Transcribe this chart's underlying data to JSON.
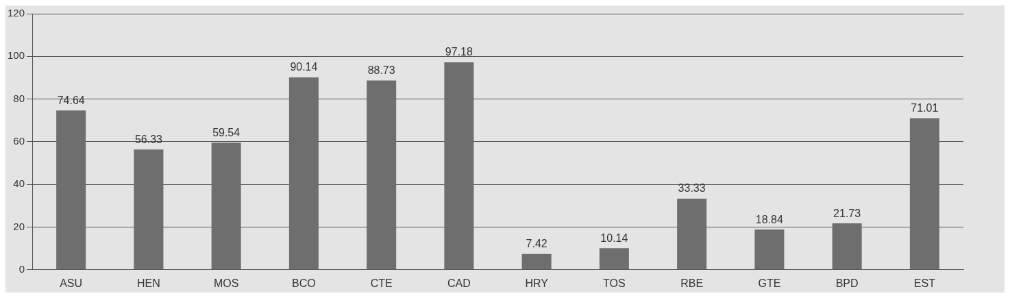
{
  "chart_data": {
    "type": "bar",
    "categories": [
      "ASU",
      "HEN",
      "MOS",
      "BCO",
      "CTE",
      "CAD",
      "HRY",
      "TOS",
      "RBE",
      "GTE",
      "BPD",
      "EST"
    ],
    "values": [
      74.64,
      56.33,
      59.54,
      90.14,
      88.73,
      97.18,
      7.42,
      10.14,
      33.33,
      18.84,
      21.73,
      71.01
    ],
    "color": "#6e6e6e",
    "ylim": [
      0,
      120
    ],
    "yticks": [
      0,
      20,
      40,
      60,
      80,
      100,
      120
    ],
    "grid": "y",
    "data_labels": true,
    "legend": false
  }
}
